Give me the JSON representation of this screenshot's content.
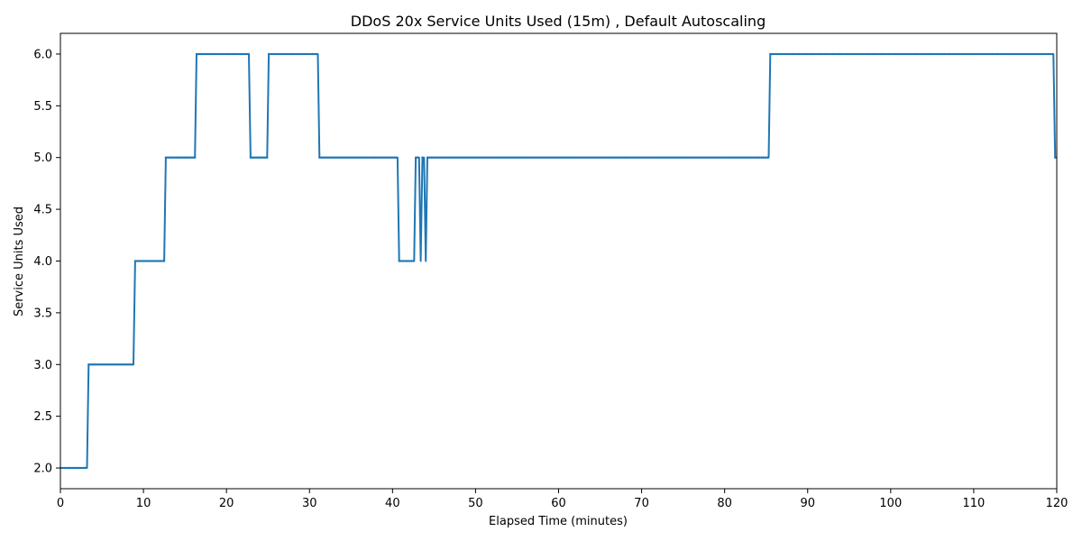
{
  "chart_data": {
    "type": "line",
    "title": "DDoS 20x Service Units Used (15m) , Default Autoscaling",
    "xlabel": "Elapsed Time (minutes)",
    "ylabel": "Service Units Used",
    "xlim": [
      0,
      120
    ],
    "ylim": [
      1.8,
      6.2
    ],
    "xticks": [
      0,
      10,
      20,
      30,
      40,
      50,
      60,
      70,
      80,
      90,
      100,
      110,
      120
    ],
    "yticks": [
      2.0,
      2.5,
      3.0,
      3.5,
      4.0,
      4.5,
      5.0,
      5.5,
      6.0
    ],
    "ytick_labels": [
      "2.0",
      "2.5",
      "3.0",
      "3.5",
      "4.0",
      "4.5",
      "5.0",
      "5.5",
      "6.0"
    ],
    "grid": false,
    "line_color": "#1f77b4",
    "series": [
      {
        "x": [
          0,
          3.2,
          3.4,
          8.8,
          9.0,
          12.5,
          12.7,
          16.2,
          16.4,
          22.7,
          22.9,
          24.9,
          25.1,
          31.0,
          31.2,
          40.6,
          40.8,
          42.6,
          42.8,
          43.2,
          43.4,
          43.6,
          43.8,
          44.0,
          44.2,
          85.3,
          85.5,
          119.6,
          119.8,
          120
        ],
        "y": [
          2,
          2,
          3,
          3,
          4,
          4,
          5,
          5,
          6,
          6,
          5,
          5,
          6,
          6,
          5,
          5,
          4,
          4,
          5,
          5,
          4,
          5,
          5,
          4,
          5,
          5,
          6,
          6,
          5,
          5
        ]
      }
    ]
  }
}
